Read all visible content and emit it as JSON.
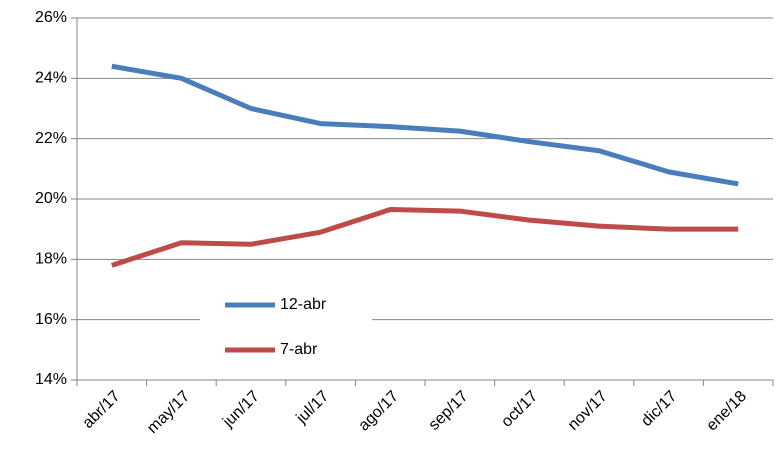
{
  "chart_data": {
    "type": "line",
    "categories": [
      "abr/17",
      "may/17",
      "jun/17",
      "jul/17",
      "ago/17",
      "sep/17",
      "oct/17",
      "nov/17",
      "dic/17",
      "ene/18"
    ],
    "series": [
      {
        "name": "12-abr",
        "color": "#4a7ebb",
        "values": [
          24.4,
          24.0,
          23.0,
          22.5,
          22.4,
          22.25,
          21.9,
          21.6,
          20.9,
          20.5
        ]
      },
      {
        "name": "7-abr",
        "color": "#be4b48",
        "values": [
          17.8,
          18.55,
          18.5,
          18.9,
          19.65,
          19.6,
          19.3,
          19.1,
          19.0,
          19.0
        ]
      }
    ],
    "ylim": [
      14,
      26
    ],
    "yticks": [
      {
        "value": 14,
        "label": "14%"
      },
      {
        "value": 16,
        "label": "16%"
      },
      {
        "value": 18,
        "label": "18%"
      },
      {
        "value": 20,
        "label": "20%"
      },
      {
        "value": 22,
        "label": "22%"
      },
      {
        "value": 24,
        "label": "24%"
      },
      {
        "value": 26,
        "label": "26%"
      }
    ],
    "grid": true
  }
}
